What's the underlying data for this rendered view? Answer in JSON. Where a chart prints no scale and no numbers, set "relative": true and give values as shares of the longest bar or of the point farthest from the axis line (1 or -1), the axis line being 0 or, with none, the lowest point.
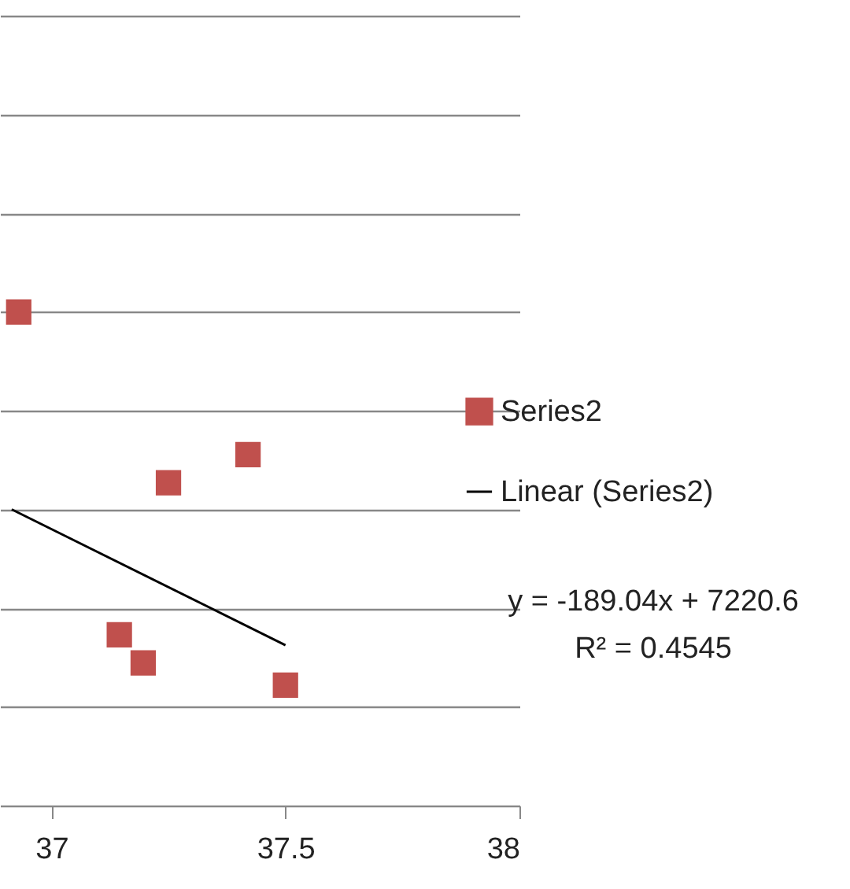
{
  "chart_data": {
    "type": "scatter",
    "relative": true,
    "xlim": [
      36.89,
      38
    ],
    "xticks": [
      37,
      37.5,
      38
    ],
    "grid": "y",
    "legend": "right",
    "series": [
      {
        "name": "Series2",
        "marker": "square",
        "color": "#c0504d",
        "x": [
          36.93,
          37.25,
          37.42,
          37.145,
          37.196,
          37.5
        ],
        "values": [
          1,
          0.654,
          0.711,
          0.346,
          0.289,
          0.244
        ]
      },
      {
        "name": "Linear (Series2)",
        "type": "line",
        "color": "#000000",
        "x": [
          36.915,
          37.5
        ],
        "values": [
          0.6,
          0.325
        ]
      }
    ],
    "annotations": [
      "y = -189.04x + 7220.6",
      "R² = 0.4545"
    ]
  }
}
